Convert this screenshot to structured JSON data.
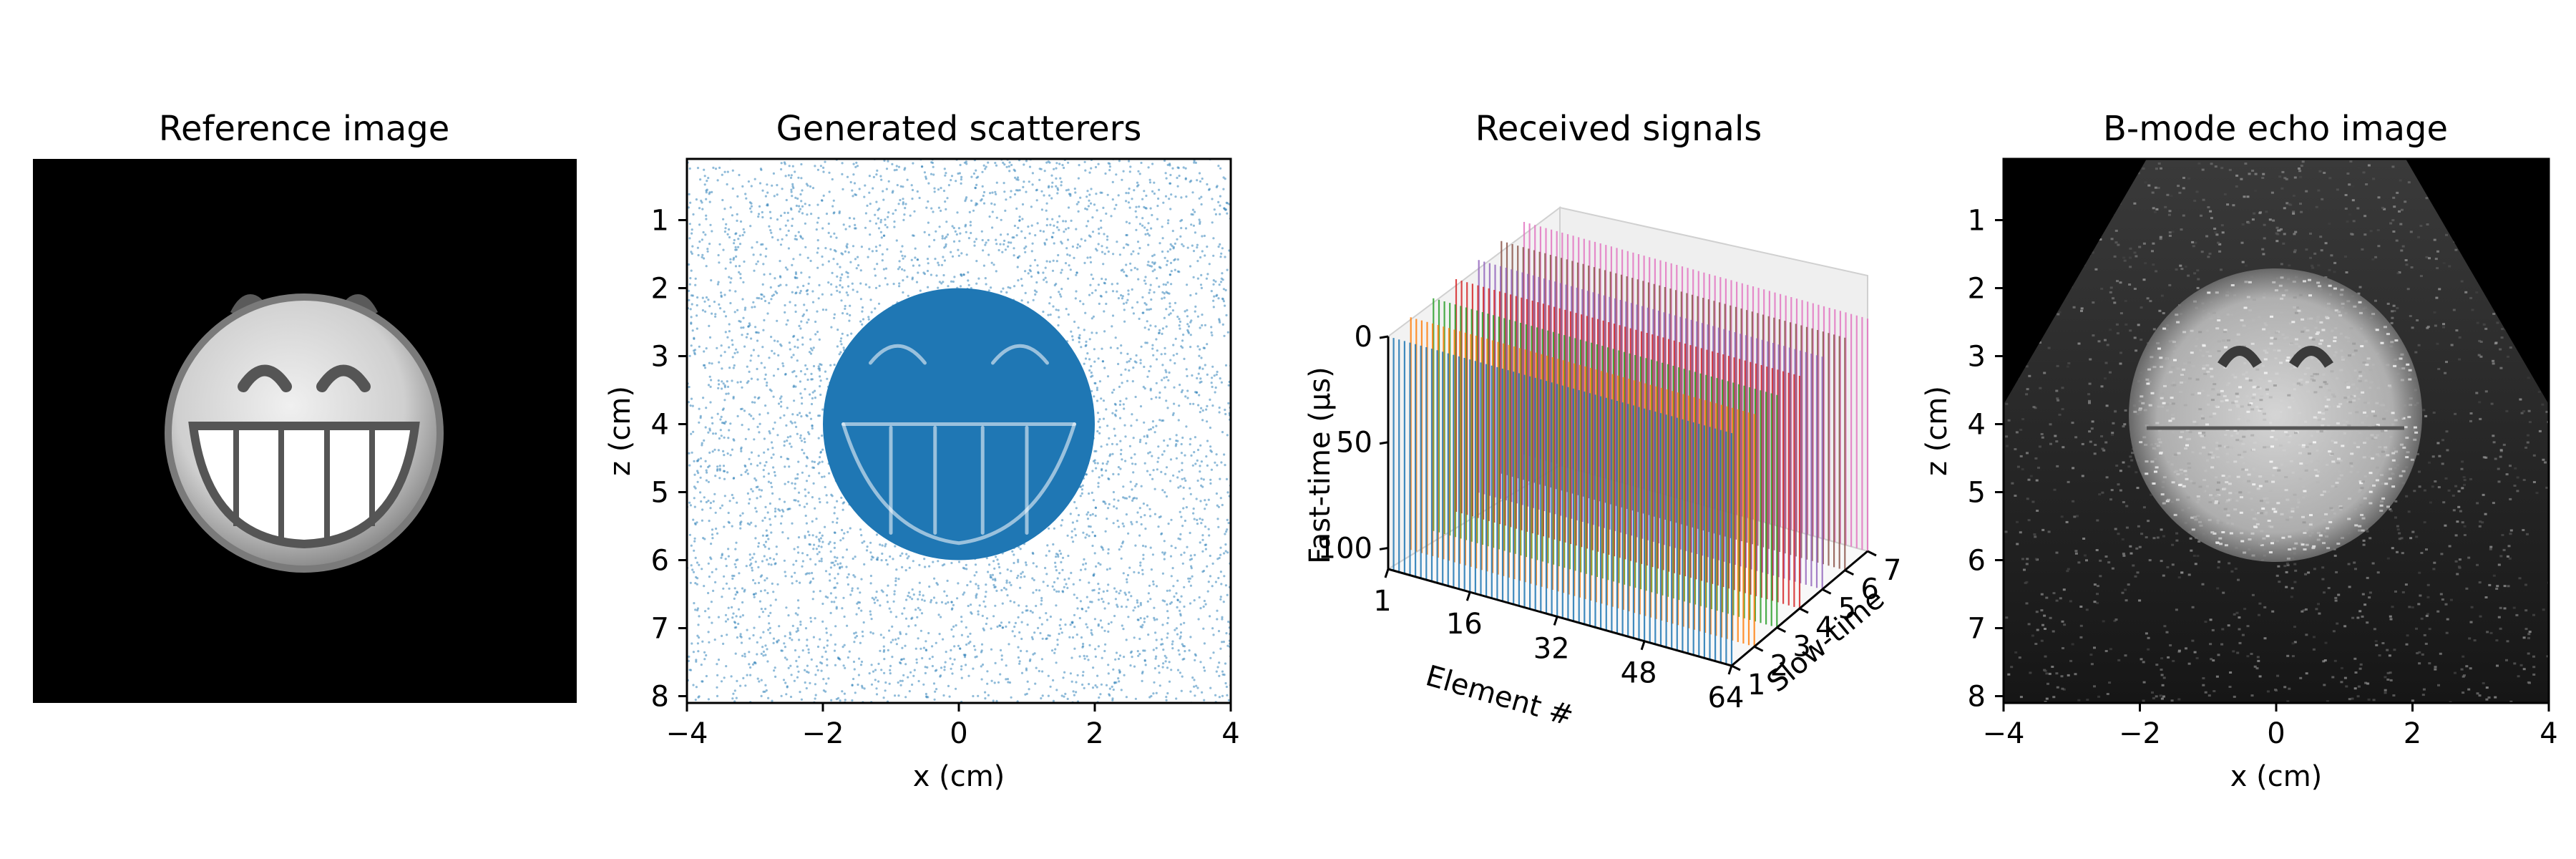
{
  "figure": {
    "panels": [
      {
        "title": "Reference image"
      },
      {
        "title": "Generated scatterers",
        "xlabel": "x (cm)",
        "ylabel": "z (cm)"
      },
      {
        "title": "Received signals",
        "xlabel": "Element #",
        "ylabel": "Slow-time",
        "zlabel": "Fast-time (µs)"
      },
      {
        "title": "B-mode echo image",
        "xlabel": "x (cm)",
        "ylabel": "z (cm)"
      }
    ]
  },
  "chart_data": [
    {
      "type": "heatmap",
      "title": "Reference image",
      "description_visible": "grayscale smiley face on black background",
      "colormap": "gray"
    },
    {
      "type": "scatter",
      "title": "Generated scatterers",
      "xlabel": "x (cm)",
      "ylabel": "z (cm)",
      "xlim": [
        -4,
        4
      ],
      "ylim": [
        8.1,
        0.1
      ],
      "xticks": [
        -4,
        -2,
        0,
        2,
        4
      ],
      "yticks": [
        1,
        2,
        3,
        4,
        5,
        6,
        7,
        8
      ],
      "y_inverted": true,
      "color": "#1f77b4",
      "shape": {
        "face_center": [
          0,
          4
        ],
        "face_radius": 2.0
      }
    },
    {
      "type": "line",
      "title": "Received signals",
      "projection": "3d",
      "xlabel": "Element #",
      "ylabel": "Slow-time",
      "zlabel": "Fast-time (µs)",
      "xticks": [
        1,
        16,
        32,
        48,
        64
      ],
      "yticks": [
        1,
        2,
        3,
        4,
        5,
        6,
        7
      ],
      "zticks": [
        0,
        50,
        100
      ],
      "series": [
        {
          "slow_time": 1,
          "color": "#1f77b4"
        },
        {
          "slow_time": 2,
          "color": "#ff7f0e"
        },
        {
          "slow_time": 3,
          "color": "#2ca02c"
        },
        {
          "slow_time": 4,
          "color": "#d62728"
        },
        {
          "slow_time": 5,
          "color": "#9467bd"
        },
        {
          "slow_time": 6,
          "color": "#8c564b"
        },
        {
          "slow_time": 7,
          "color": "#e377c2"
        }
      ]
    },
    {
      "type": "heatmap",
      "title": "B-mode echo image",
      "xlabel": "x (cm)",
      "ylabel": "z (cm)",
      "xlim": [
        -4,
        4
      ],
      "ylim": [
        8.1,
        0.1
      ],
      "xticks": [
        -4,
        -2,
        0,
        2,
        4
      ],
      "yticks": [
        1,
        2,
        3,
        4,
        5,
        6,
        7,
        8
      ],
      "colormap": "gray"
    }
  ]
}
